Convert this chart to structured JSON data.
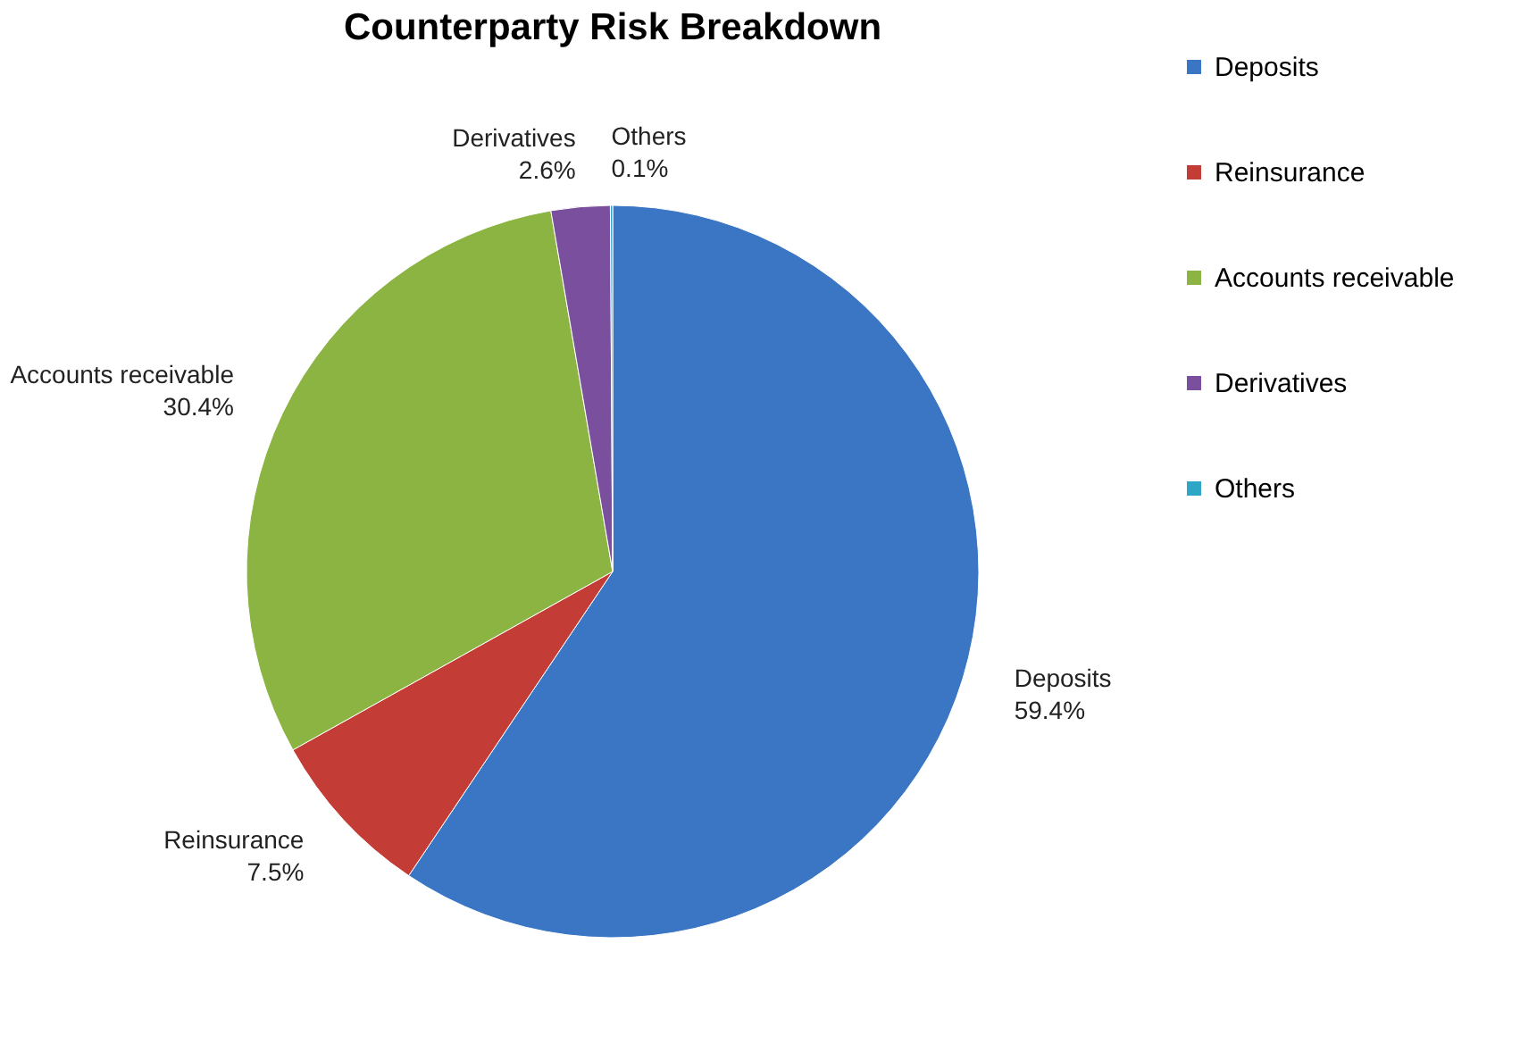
{
  "chart_data": {
    "type": "pie",
    "title": "Counterparty Risk Breakdown",
    "categories": [
      "Deposits",
      "Reinsurance",
      "Accounts receivable",
      "Derivatives",
      "Others"
    ],
    "values": [
      59.4,
      7.5,
      30.4,
      2.6,
      0.1
    ],
    "value_labels": [
      "59.4%",
      "7.5%",
      "30.4%",
      "2.6%",
      "0.1%"
    ],
    "colors": [
      "#3a76c4",
      "#c43c36",
      "#8cb443",
      "#7a509e",
      "#2ea6c6"
    ],
    "legend": "right"
  }
}
